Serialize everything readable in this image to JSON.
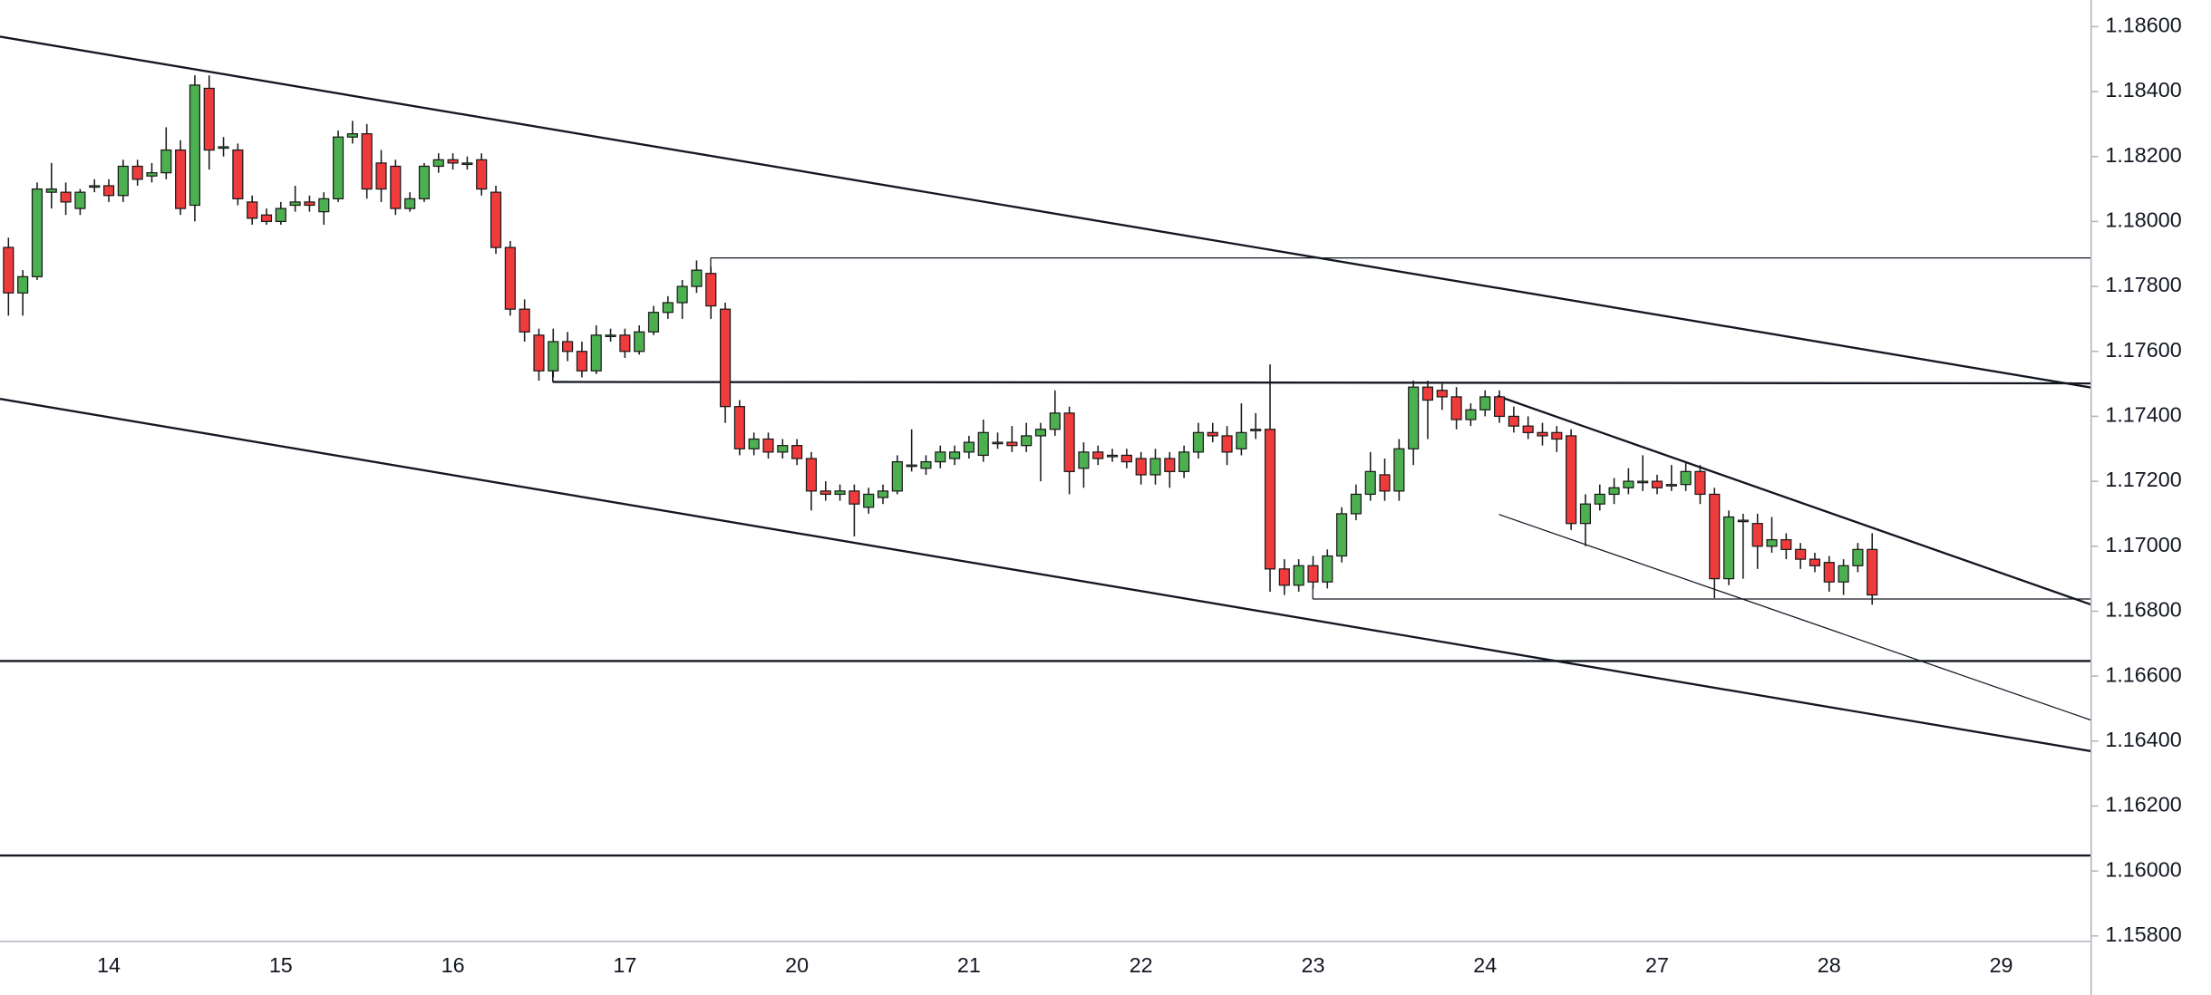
{
  "chart_data": {
    "type": "candlestick",
    "up_color": "#4caf50",
    "down_color": "#ef3b3b",
    "ylim": [
      1.15783,
      1.18682
    ],
    "yticks": [
      {
        "value": 1.186,
        "label": "1.18600"
      },
      {
        "value": 1.184,
        "label": "1.18400"
      },
      {
        "value": 1.182,
        "label": "1.18200"
      },
      {
        "value": 1.18,
        "label": "1.18000"
      },
      {
        "value": 1.178,
        "label": "1.17800"
      },
      {
        "value": 1.176,
        "label": "1.17600"
      },
      {
        "value": 1.174,
        "label": "1.17400"
      },
      {
        "value": 1.172,
        "label": "1.17200"
      },
      {
        "value": 1.17,
        "label": "1.17000"
      },
      {
        "value": 1.168,
        "label": "1.16800"
      },
      {
        "value": 1.166,
        "label": "1.16600"
      },
      {
        "value": 1.164,
        "label": "1.16400"
      },
      {
        "value": 1.162,
        "label": "1.16200"
      },
      {
        "value": 1.16,
        "label": "1.16000"
      },
      {
        "value": 1.158,
        "label": "1.15800"
      }
    ],
    "categories": [
      null,
      null,
      null,
      null,
      null,
      null,
      null,
      "14",
      null,
      null,
      null,
      null,
      null,
      null,
      null,
      null,
      null,
      null,
      null,
      "15",
      null,
      null,
      null,
      null,
      null,
      null,
      null,
      null,
      null,
      null,
      null,
      "16",
      null,
      null,
      null,
      null,
      null,
      null,
      null,
      null,
      null,
      null,
      null,
      "17",
      null,
      null,
      null,
      null,
      null,
      null,
      null,
      null,
      null,
      null,
      null,
      "20",
      null,
      null,
      null,
      null,
      null,
      null,
      null,
      null,
      null,
      null,
      null,
      "21",
      null,
      null,
      null,
      null,
      null,
      null,
      null,
      null,
      null,
      null,
      null,
      "22",
      null,
      null,
      null,
      null,
      null,
      null,
      null,
      null,
      null,
      null,
      null,
      "23",
      null,
      null,
      null,
      null,
      null,
      null,
      null,
      null,
      null,
      null,
      null,
      "24",
      null,
      null,
      null,
      null,
      null,
      null,
      null,
      null,
      null,
      null,
      null,
      "27",
      null,
      null,
      null,
      null,
      null,
      null,
      null,
      null,
      null,
      null,
      null,
      "28",
      null,
      null,
      null,
      null,
      null,
      null,
      null,
      null,
      null,
      null,
      null,
      "29",
      null,
      null,
      null,
      null,
      null
    ],
    "ohlc": [
      [
        1.1792,
        1.1795,
        1.1771,
        1.1778
      ],
      [
        1.1778,
        1.1785,
        1.1771,
        1.1783
      ],
      [
        1.1783,
        1.1812,
        1.1782,
        1.181
      ],
      [
        1.1809,
        1.1818,
        1.1804,
        1.181
      ],
      [
        1.1809,
        1.1812,
        1.1802,
        1.1806
      ],
      [
        1.1804,
        1.181,
        1.1802,
        1.1809
      ],
      [
        1.1811,
        1.1813,
        1.1809,
        1.1811
      ],
      [
        1.1811,
        1.1813,
        1.1806,
        1.1808
      ],
      [
        1.1808,
        1.1819,
        1.1806,
        1.1817
      ],
      [
        1.1817,
        1.1819,
        1.1811,
        1.1813
      ],
      [
        1.1814,
        1.1818,
        1.1812,
        1.1815
      ],
      [
        1.1815,
        1.1829,
        1.1813,
        1.1822
      ],
      [
        1.1822,
        1.1825,
        1.1802,
        1.1804
      ],
      [
        1.1805,
        1.1845,
        1.18,
        1.1842
      ],
      [
        1.1841,
        1.1845,
        1.1816,
        1.1822
      ],
      [
        1.1823,
        1.1826,
        1.182,
        1.1823
      ],
      [
        1.1822,
        1.1824,
        1.1805,
        1.1807
      ],
      [
        1.1806,
        1.1808,
        1.1799,
        1.1801
      ],
      [
        1.1802,
        1.1804,
        1.1799,
        1.18
      ],
      [
        1.18,
        1.1806,
        1.1799,
        1.1804
      ],
      [
        1.1805,
        1.1811,
        1.1803,
        1.1806
      ],
      [
        1.1806,
        1.1808,
        1.1803,
        1.1805
      ],
      [
        1.1803,
        1.1809,
        1.1799,
        1.1807
      ],
      [
        1.1807,
        1.1828,
        1.1806,
        1.1826
      ],
      [
        1.1826,
        1.1831,
        1.1824,
        1.1827
      ],
      [
        1.1827,
        1.183,
        1.1807,
        1.181
      ],
      [
        1.1818,
        1.1822,
        1.1806,
        1.181
      ],
      [
        1.1817,
        1.1819,
        1.1802,
        1.1804
      ],
      [
        1.1804,
        1.1809,
        1.1803,
        1.1807
      ],
      [
        1.1807,
        1.1818,
        1.1806,
        1.1817
      ],
      [
        1.1817,
        1.1821,
        1.1815,
        1.1819
      ],
      [
        1.1819,
        1.1821,
        1.1816,
        1.1818
      ],
      [
        1.1818,
        1.182,
        1.1816,
        1.1818
      ],
      [
        1.1819,
        1.1821,
        1.1808,
        1.181
      ],
      [
        1.1809,
        1.1811,
        1.179,
        1.1792
      ],
      [
        1.1792,
        1.1794,
        1.1771,
        1.1773
      ],
      [
        1.1773,
        1.1776,
        1.1763,
        1.1766
      ],
      [
        1.1765,
        1.1767,
        1.1751,
        1.1754
      ],
      [
        1.1754,
        1.1767,
        1.1752,
        1.1763
      ],
      [
        1.1763,
        1.1766,
        1.1757,
        1.176
      ],
      [
        1.176,
        1.1763,
        1.1752,
        1.1754
      ],
      [
        1.1754,
        1.1768,
        1.1753,
        1.1765
      ],
      [
        1.1765,
        1.1767,
        1.1763,
        1.1765
      ],
      [
        1.1765,
        1.1767,
        1.1758,
        1.176
      ],
      [
        1.176,
        1.1768,
        1.1759,
        1.1766
      ],
      [
        1.1766,
        1.1774,
        1.1765,
        1.1772
      ],
      [
        1.1772,
        1.1777,
        1.177,
        1.1775
      ],
      [
        1.1775,
        1.1782,
        1.177,
        1.178
      ],
      [
        1.178,
        1.1788,
        1.1778,
        1.1785
      ],
      [
        1.1784,
        1.1786,
        1.177,
        1.1774
      ],
      [
        1.1773,
        1.1775,
        1.1738,
        1.1743
      ],
      [
        1.1743,
        1.1745,
        1.1728,
        1.173
      ],
      [
        1.173,
        1.1735,
        1.1728,
        1.1733
      ],
      [
        1.1733,
        1.1735,
        1.1727,
        1.1729
      ],
      [
        1.1729,
        1.1733,
        1.1727,
        1.1731
      ],
      [
        1.1731,
        1.1733,
        1.1725,
        1.1727
      ],
      [
        1.1727,
        1.1729,
        1.1711,
        1.1717
      ],
      [
        1.1717,
        1.172,
        1.1714,
        1.1716
      ],
      [
        1.1716,
        1.1719,
        1.1714,
        1.1717
      ],
      [
        1.1717,
        1.1719,
        1.1703,
        1.1713
      ],
      [
        1.1712,
        1.1718,
        1.171,
        1.1716
      ],
      [
        1.1715,
        1.1719,
        1.1713,
        1.1717
      ],
      [
        1.1717,
        1.1728,
        1.1716,
        1.1726
      ],
      [
        1.1725,
        1.1736,
        1.1723,
        1.1725
      ],
      [
        1.1724,
        1.1728,
        1.1722,
        1.1726
      ],
      [
        1.1726,
        1.1731,
        1.1724,
        1.1729
      ],
      [
        1.1727,
        1.1731,
        1.1725,
        1.1729
      ],
      [
        1.1729,
        1.1734,
        1.1727,
        1.1732
      ],
      [
        1.1728,
        1.1739,
        1.1726,
        1.1735
      ],
      [
        1.1732,
        1.1735,
        1.173,
        1.1732
      ],
      [
        1.1732,
        1.1737,
        1.1729,
        1.1731
      ],
      [
        1.1731,
        1.1738,
        1.1729,
        1.1734
      ],
      [
        1.1734,
        1.1738,
        1.172,
        1.1736
      ],
      [
        1.1736,
        1.1748,
        1.1734,
        1.1741
      ],
      [
        1.1741,
        1.1743,
        1.1716,
        1.1723
      ],
      [
        1.1724,
        1.1732,
        1.1718,
        1.1729
      ],
      [
        1.1729,
        1.1731,
        1.1725,
        1.1727
      ],
      [
        1.1728,
        1.173,
        1.1726,
        1.1728
      ],
      [
        1.1728,
        1.173,
        1.1724,
        1.1726
      ],
      [
        1.1727,
        1.1729,
        1.1719,
        1.1722
      ],
      [
        1.1722,
        1.173,
        1.1719,
        1.1727
      ],
      [
        1.1727,
        1.1729,
        1.1718,
        1.1723
      ],
      [
        1.1723,
        1.1731,
        1.1721,
        1.1729
      ],
      [
        1.1729,
        1.1738,
        1.1727,
        1.1735
      ],
      [
        1.1735,
        1.1738,
        1.1732,
        1.1734
      ],
      [
        1.1734,
        1.1737,
        1.1725,
        1.1729
      ],
      [
        1.173,
        1.1744,
        1.1728,
        1.1735
      ],
      [
        1.1736,
        1.1741,
        1.1733,
        1.1736
      ],
      [
        1.1736,
        1.1756,
        1.1686,
        1.1693
      ],
      [
        1.1693,
        1.1696,
        1.1685,
        1.1688
      ],
      [
        1.1688,
        1.1696,
        1.1686,
        1.1694
      ],
      [
        1.1694,
        1.1697,
        1.1687,
        1.1689
      ],
      [
        1.1689,
        1.1699,
        1.1687,
        1.1697
      ],
      [
        1.1697,
        1.1712,
        1.1695,
        1.171
      ],
      [
        1.171,
        1.1719,
        1.1708,
        1.1716
      ],
      [
        1.1716,
        1.1729,
        1.1714,
        1.1723
      ],
      [
        1.1722,
        1.1727,
        1.1714,
        1.1717
      ],
      [
        1.1717,
        1.1733,
        1.1714,
        1.173
      ],
      [
        1.173,
        1.1751,
        1.1725,
        1.1749
      ],
      [
        1.1749,
        1.1751,
        1.1733,
        1.1745
      ],
      [
        1.1748,
        1.175,
        1.1742,
        1.1746
      ],
      [
        1.1746,
        1.1749,
        1.1736,
        1.1739
      ],
      [
        1.1739,
        1.1744,
        1.1737,
        1.1742
      ],
      [
        1.1742,
        1.1748,
        1.174,
        1.1746
      ],
      [
        1.1746,
        1.1748,
        1.1738,
        1.174
      ],
      [
        1.174,
        1.1743,
        1.1735,
        1.1737
      ],
      [
        1.1737,
        1.174,
        1.1733,
        1.1735
      ],
      [
        1.1735,
        1.1738,
        1.1731,
        1.1734
      ],
      [
        1.1735,
        1.1737,
        1.1729,
        1.1733
      ],
      [
        1.1734,
        1.1736,
        1.1705,
        1.1707
      ],
      [
        1.1707,
        1.1716,
        1.17,
        1.1713
      ],
      [
        1.1713,
        1.1719,
        1.1711,
        1.1716
      ],
      [
        1.1716,
        1.1721,
        1.1713,
        1.1718
      ],
      [
        1.1718,
        1.1724,
        1.1716,
        1.172
      ],
      [
        1.172,
        1.1728,
        1.1717,
        1.172
      ],
      [
        1.172,
        1.1722,
        1.1716,
        1.1718
      ],
      [
        1.1719,
        1.1725,
        1.1717,
        1.1719
      ],
      [
        1.1719,
        1.1726,
        1.1717,
        1.1723
      ],
      [
        1.1723,
        1.1725,
        1.1713,
        1.1716
      ],
      [
        1.1716,
        1.1718,
        1.1684,
        1.169
      ],
      [
        1.169,
        1.1711,
        1.1688,
        1.1709
      ],
      [
        1.1708,
        1.171,
        1.169,
        1.1708
      ],
      [
        1.1707,
        1.171,
        1.1693,
        1.17
      ],
      [
        1.17,
        1.1709,
        1.1698,
        1.1702
      ],
      [
        1.1702,
        1.1704,
        1.1696,
        1.1699
      ],
      [
        1.1699,
        1.1701,
        1.1693,
        1.1696
      ],
      [
        1.1696,
        1.1698,
        1.1692,
        1.1694
      ],
      [
        1.1695,
        1.1697,
        1.1686,
        1.1689
      ],
      [
        1.1689,
        1.1696,
        1.1685,
        1.1694
      ],
      [
        1.1694,
        1.1701,
        1.1692,
        1.1699
      ],
      [
        1.1699,
        1.1704,
        1.1682,
        1.1685
      ],
      null,
      null,
      null,
      null,
      null,
      null,
      null,
      null,
      null,
      null,
      null,
      null,
      null,
      null
    ]
  }
}
